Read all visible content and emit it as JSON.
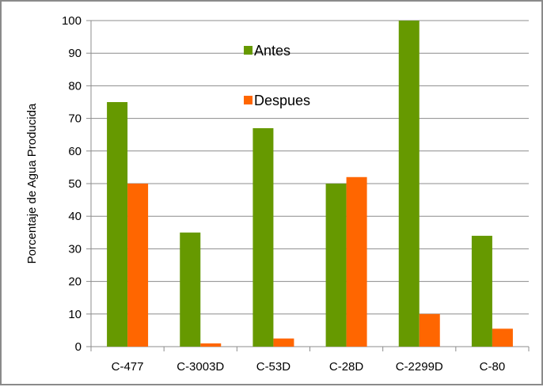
{
  "chart_data": {
    "type": "bar",
    "categories": [
      "C-477",
      "C-3003D",
      "C-53D",
      "C-28D",
      "C-2299D",
      "C-80"
    ],
    "series": [
      {
        "name": "Antes",
        "color": "#669900",
        "values": [
          75,
          35,
          67,
          50,
          100,
          34
        ]
      },
      {
        "name": "Despues",
        "color": "#ff6600",
        "values": [
          50,
          1,
          2.5,
          52,
          10,
          5.5
        ]
      }
    ],
    "ylabel": "Porcentaje de Agua Producida",
    "xlabel": "",
    "ylim": [
      0,
      100
    ],
    "yticks": [
      "0",
      "10",
      "20",
      "30",
      "40",
      "50",
      "60",
      "70",
      "80",
      "90",
      "100"
    ],
    "grid": true,
    "legend": "inside-top-center"
  }
}
